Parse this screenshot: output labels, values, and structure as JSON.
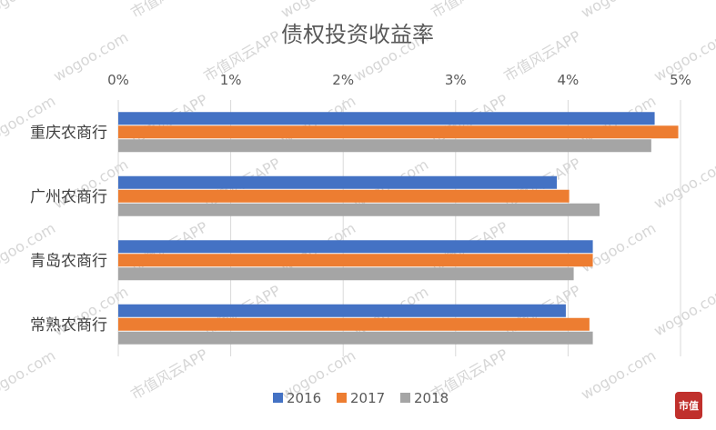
{
  "chart_data": {
    "type": "bar",
    "orientation": "horizontal",
    "title": "债权投资收益率",
    "categories": [
      "重庆农商行",
      "广州农商行",
      "青岛农商行",
      "常熟农商行"
    ],
    "series": [
      {
        "name": "2016",
        "color": "#4472C4",
        "values": [
          4.77,
          3.9,
          4.22,
          3.98
        ]
      },
      {
        "name": "2017",
        "color": "#ED7D31",
        "values": [
          4.98,
          4.01,
          4.22,
          4.19
        ]
      },
      {
        "name": "2018",
        "color": "#A5A5A5",
        "values": [
          4.74,
          4.28,
          4.05,
          4.22
        ]
      }
    ],
    "xlim": [
      0,
      5
    ],
    "x_ticks": [
      "0%",
      "1%",
      "2%",
      "3%",
      "4%",
      "5%"
    ],
    "grid": true,
    "legend_position": "bottom"
  },
  "watermark": {
    "text_1": "wogoo.com",
    "text_2": "市值风云APP",
    "logo_text": "市值"
  }
}
